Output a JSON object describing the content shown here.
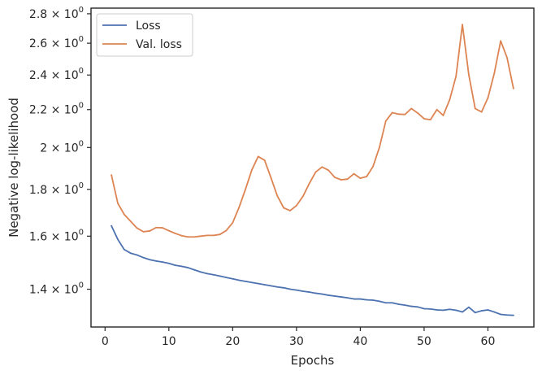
{
  "chart_data": {
    "type": "line",
    "title": "",
    "xlabel": "Epochs",
    "ylabel": "Negative log-likelihood",
    "yscale": "log",
    "xlim": [
      -2.2,
      67.2
    ],
    "ylim": [
      1.273,
      2.84
    ],
    "grid": false,
    "legend_position": "top-left",
    "x_ticks": [
      {
        "value": 0,
        "label": "0"
      },
      {
        "value": 10,
        "label": "10"
      },
      {
        "value": 20,
        "label": "20"
      },
      {
        "value": 30,
        "label": "30"
      },
      {
        "value": 40,
        "label": "40"
      },
      {
        "value": 50,
        "label": "50"
      },
      {
        "value": 60,
        "label": "60"
      }
    ],
    "y_ticks": [
      {
        "value": 1.4,
        "mantissa": "1.4",
        "op": "×",
        "base": "10",
        "exp": "0"
      },
      {
        "value": 1.6,
        "mantissa": "1.6",
        "op": "×",
        "base": "10",
        "exp": "0"
      },
      {
        "value": 1.8,
        "mantissa": "1.8",
        "op": "×",
        "base": "10",
        "exp": "0"
      },
      {
        "value": 2.0,
        "mantissa": "2",
        "op": "×",
        "base": "10",
        "exp": "0"
      },
      {
        "value": 2.2,
        "mantissa": "2.2",
        "op": "×",
        "base": "10",
        "exp": "0"
      },
      {
        "value": 2.4,
        "mantissa": "2.4",
        "op": "×",
        "base": "10",
        "exp": "0"
      },
      {
        "value": 2.6,
        "mantissa": "2.6",
        "op": "×",
        "base": "10",
        "exp": "0"
      },
      {
        "value": 2.8,
        "mantissa": "2.8",
        "op": "×",
        "base": "10",
        "exp": "0"
      }
    ],
    "x": [
      1,
      2,
      3,
      4,
      5,
      6,
      7,
      8,
      9,
      10,
      11,
      12,
      13,
      14,
      15,
      16,
      17,
      18,
      19,
      20,
      21,
      22,
      23,
      24,
      25,
      26,
      27,
      28,
      29,
      30,
      31,
      32,
      33,
      34,
      35,
      36,
      37,
      38,
      39,
      40,
      41,
      42,
      43,
      44,
      45,
      46,
      47,
      48,
      49,
      50,
      51,
      52,
      53,
      54,
      55,
      56,
      57,
      58,
      59,
      60,
      61,
      62,
      63,
      64
    ],
    "series": [
      {
        "name": "Loss",
        "color": "#4c72b0",
        "values": [
          1.642,
          1.587,
          1.547,
          1.533,
          1.526,
          1.516,
          1.508,
          1.503,
          1.499,
          1.494,
          1.487,
          1.483,
          1.478,
          1.47,
          1.462,
          1.456,
          1.452,
          1.447,
          1.442,
          1.437,
          1.432,
          1.428,
          1.424,
          1.42,
          1.416,
          1.412,
          1.408,
          1.405,
          1.4,
          1.397,
          1.393,
          1.39,
          1.386,
          1.383,
          1.379,
          1.376,
          1.373,
          1.37,
          1.366,
          1.366,
          1.363,
          1.362,
          1.358,
          1.353,
          1.353,
          1.348,
          1.345,
          1.341,
          1.339,
          1.333,
          1.332,
          1.329,
          1.328,
          1.331,
          1.328,
          1.322,
          1.338,
          1.32,
          1.326,
          1.329,
          1.322,
          1.314,
          1.312,
          1.311
        ]
      },
      {
        "name": "Val. loss",
        "color": "#dd8452",
        "values": [
          1.866,
          1.738,
          1.69,
          1.661,
          1.633,
          1.618,
          1.621,
          1.635,
          1.634,
          1.622,
          1.611,
          1.602,
          1.597,
          1.597,
          1.6,
          1.603,
          1.603,
          1.607,
          1.623,
          1.655,
          1.72,
          1.8,
          1.89,
          1.955,
          1.937,
          1.853,
          1.77,
          1.718,
          1.706,
          1.728,
          1.768,
          1.826,
          1.88,
          1.904,
          1.889,
          1.855,
          1.844,
          1.847,
          1.872,
          1.851,
          1.859,
          1.907,
          2.001,
          2.138,
          2.183,
          2.175,
          2.173,
          2.206,
          2.181,
          2.15,
          2.145,
          2.2,
          2.168,
          2.255,
          2.392,
          2.725,
          2.402,
          2.206,
          2.187,
          2.266,
          2.411,
          2.615,
          2.507,
          2.32
        ]
      }
    ]
  }
}
